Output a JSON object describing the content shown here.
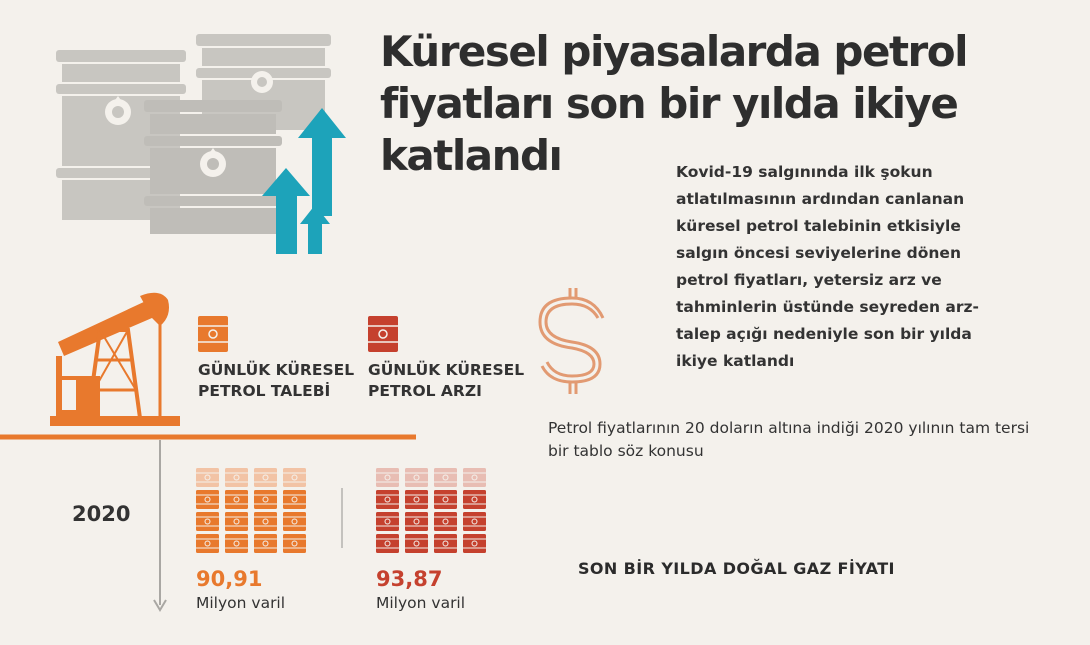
{
  "title": "Küresel piyasalarda petrol fiyatları son bir yılda ikiye katlandı",
  "description": "Kovid-19 salgınında ilk şokun atlatılmasının ardından canlanan küresel petrol talebinin etkisiyle salgın öncesi seviyelerine dönen petrol fiyatları, yetersiz arz ve tahminlerin üstünde seyreden arz-talep açığı nedeniyle son bir yılda ikiye katlandı",
  "note": "Petrol fiyatlarının 20 doların altına indiği 2020 yılının tam tersi bir tablo söz konusu",
  "gas_heading": "SON BİR YILDA DOĞAL GAZ FİYATI",
  "year": "2020",
  "demand": {
    "label": "GÜNLÜK KÜRESEL PETROL TALEBİ",
    "value": "90,91",
    "unit": "Milyon varil",
    "color": "#e8792d",
    "light_color": "#f2c3a5"
  },
  "supply": {
    "label": "GÜNLÜK KÜRESEL PETROL ARZI",
    "value": "93,87",
    "unit": "Milyon varil",
    "color": "#c5412e",
    "light_color": "#e8bdb3"
  },
  "icons": [
    "oil-barrels-icon",
    "up-arrows-icon",
    "pump-jack-icon",
    "dollar-icon",
    "barrel-icon"
  ]
}
